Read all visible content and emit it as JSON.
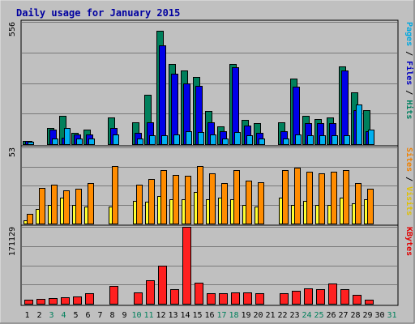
{
  "chart_data": {
    "type": "bar",
    "title": "Daily usage for January 2015",
    "days": [
      "1",
      "2",
      "3",
      "4",
      "5",
      "6",
      "7",
      "8",
      "9",
      "10",
      "11",
      "12",
      "13",
      "14",
      "15",
      "16",
      "17",
      "18",
      "19",
      "20",
      "21",
      "22",
      "23",
      "24",
      "25",
      "26",
      "27",
      "28",
      "29",
      "30",
      "31"
    ],
    "weekend_days": [
      3,
      4,
      10,
      11,
      17,
      18,
      24,
      25,
      31
    ],
    "panels": [
      {
        "key": "top",
        "ymax_label": "556",
        "ymax": 556,
        "legend": [
          {
            "text": "Pages",
            "color": "#00a8e0"
          },
          {
            "text": " / ",
            "color": "#000000"
          },
          {
            "text": "Files",
            "color": "#0000c0"
          },
          {
            "text": " / ",
            "color": "#000000"
          },
          {
            "text": "Hits",
            "color": "#008060"
          }
        ],
        "series": [
          {
            "id": "hits",
            "color": "#00805c",
            "values": [
              15,
              null,
              75,
              130,
              50,
              65,
              null,
              120,
              null,
              100,
              225,
              515,
              365,
              335,
              305,
              150,
              80,
              365,
              110,
              95,
              null,
              100,
              300,
              130,
              115,
              120,
              355,
              235,
              155,
              null,
              null
            ]
          },
          {
            "id": "files",
            "color": "#0000e8",
            "values": [
              15,
              null,
              65,
              30,
              45,
              45,
              null,
              75,
              null,
              50,
              100,
              450,
              320,
              275,
              265,
              100,
              60,
              350,
              85,
              50,
              null,
              60,
              260,
              95,
              95,
              95,
              335,
              155,
              60,
              null,
              null
            ]
          },
          {
            "id": "pages",
            "color": "#00b0f0",
            "values": [
              10,
              null,
              25,
              75,
              25,
              25,
              null,
              45,
              null,
              25,
              40,
              40,
              45,
              60,
              55,
              45,
              25,
              55,
              40,
              25,
              null,
              25,
              45,
              40,
              40,
              40,
              40,
              180,
              65,
              null,
              null
            ]
          }
        ]
      },
      {
        "key": "mid",
        "ymax_label": "53",
        "ymax": 53,
        "legend": [
          {
            "text": "Sites",
            "color": "#f08000"
          },
          {
            "text": " / ",
            "color": "#000000"
          },
          {
            "text": "Visits",
            "color": "#e0c000"
          }
        ],
        "series": [
          {
            "id": "visits",
            "color": "#ffff30",
            "values": [
              2,
              10,
              13,
              18,
              13,
              12,
              null,
              12,
              null,
              16,
              15,
              19,
              17,
              17,
              22,
              17,
              18,
              17,
              13,
              12,
              null,
              18,
              13,
              16,
              13,
              13,
              18,
              14,
              17,
              null,
              null
            ]
          },
          {
            "id": "sites",
            "color": "#ff8c00",
            "values": [
              7,
              25,
              27,
              23,
              24,
              28,
              null,
              40,
              null,
              27,
              31,
              37,
              34,
              33,
              40,
              35,
              28,
              37,
              30,
              29,
              null,
              37,
              39,
              36,
              35,
              36,
              37,
              28,
              24,
              null,
              null
            ]
          }
        ]
      },
      {
        "key": "bot",
        "ymax_label": "171129",
        "ymax": 171129,
        "legend": [
          {
            "text": "KBytes",
            "color": "#e00000"
          }
        ],
        "series": [
          {
            "id": "kbytes",
            "color": "#ff2020",
            "values": [
              9000,
              11000,
              12000,
              14000,
              17000,
              24000,
              null,
              39000,
              null,
              25000,
              53000,
              85000,
              32000,
              171129,
              47000,
              23000,
              23000,
              26000,
              25000,
              23000,
              null,
              23000,
              29000,
              35000,
              33000,
              45000,
              33000,
              19000,
              9000,
              null,
              null
            ]
          }
        ]
      }
    ]
  }
}
